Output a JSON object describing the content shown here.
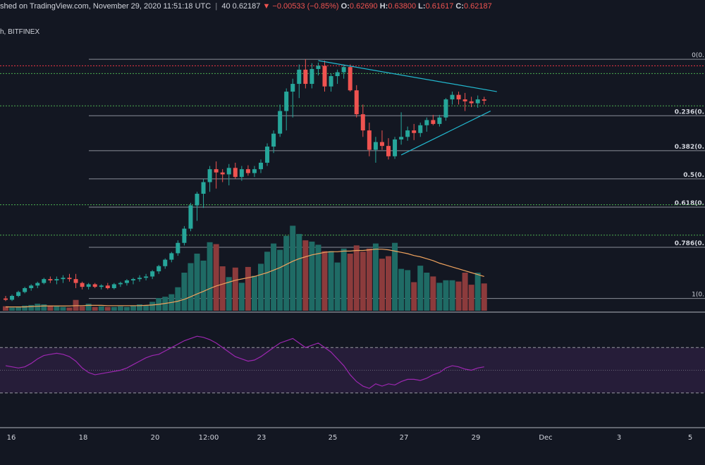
{
  "header": {
    "published": "shed on TradingView.com, November 29, 2020 11:51:18 UTC",
    "open_prefix": "40",
    "last": "0.62187",
    "change": "▼ −0.00533 (−0.85%)",
    "o_label": "O:",
    "o_value": "0.62690",
    "h_label": "H:",
    "h_value": "0.63800",
    "l_label": "L:",
    "l_value": "0.61617",
    "c_label": "C:",
    "c_value": "0.62187"
  },
  "symbol": "h, BITFINEX",
  "colors": {
    "background": "#131722",
    "up": "#26a69a",
    "down": "#ef5350",
    "up_volume": "#1f6b65",
    "down_volume": "#8c3b3c",
    "trendline": "#22b8cf",
    "volume_ma": "#f0a35e",
    "rsi": "#9c27b0",
    "fib": "#8a8e98",
    "green_dotted": "#4caf50",
    "red_dotted": "#f23645"
  },
  "chart_data": {
    "type": "candlestick",
    "x_tick_labels": [
      "16",
      "18",
      "20",
      "12:00",
      "23",
      "25",
      "27",
      "29",
      "Dec",
      "3",
      "5"
    ],
    "fib_levels": [
      {
        "ratio": "0",
        "label": "0(0."
      },
      {
        "ratio": "0.236",
        "label": "0.236(0."
      },
      {
        "ratio": "0.382",
        "label": "0.382(0."
      },
      {
        "ratio": "0.5",
        "label": "0.5(0."
      },
      {
        "ratio": "0.618",
        "label": "0.618(0."
      },
      {
        "ratio": "0.786",
        "label": "0.786(0."
      },
      {
        "ratio": "1",
        "label": "1(0."
      }
    ],
    "candles_o_h_l_c": [
      [
        0.38,
        0.384,
        0.376,
        0.378
      ],
      [
        0.378,
        0.386,
        0.376,
        0.384
      ],
      [
        0.384,
        0.392,
        0.382,
        0.39
      ],
      [
        0.39,
        0.398,
        0.388,
        0.396
      ],
      [
        0.396,
        0.402,
        0.392,
        0.4
      ],
      [
        0.4,
        0.406,
        0.396,
        0.404
      ],
      [
        0.404,
        0.412,
        0.402,
        0.41
      ],
      [
        0.41,
        0.414,
        0.404,
        0.408
      ],
      [
        0.408,
        0.414,
        0.402,
        0.41
      ],
      [
        0.41,
        0.416,
        0.404,
        0.412
      ],
      [
        0.412,
        0.418,
        0.406,
        0.41
      ],
      [
        0.41,
        0.418,
        0.396,
        0.404
      ],
      [
        0.404,
        0.406,
        0.394,
        0.398
      ],
      [
        0.398,
        0.404,
        0.394,
        0.402
      ],
      [
        0.402,
        0.404,
        0.396,
        0.398
      ],
      [
        0.398,
        0.402,
        0.394,
        0.4
      ],
      [
        0.4,
        0.404,
        0.394,
        0.396
      ],
      [
        0.396,
        0.404,
        0.394,
        0.402
      ],
      [
        0.402,
        0.406,
        0.398,
        0.404
      ],
      [
        0.404,
        0.41,
        0.4,
        0.408
      ],
      [
        0.408,
        0.412,
        0.402,
        0.41
      ],
      [
        0.41,
        0.416,
        0.406,
        0.412
      ],
      [
        0.412,
        0.418,
        0.408,
        0.414
      ],
      [
        0.414,
        0.424,
        0.41,
        0.422
      ],
      [
        0.422,
        0.432,
        0.418,
        0.43
      ],
      [
        0.43,
        0.442,
        0.426,
        0.44
      ],
      [
        0.44,
        0.452,
        0.436,
        0.45
      ],
      [
        0.45,
        0.47,
        0.446,
        0.466
      ],
      [
        0.466,
        0.492,
        0.462,
        0.488
      ],
      [
        0.488,
        0.528,
        0.484,
        0.524
      ],
      [
        0.524,
        0.545,
        0.5,
        0.542
      ],
      [
        0.542,
        0.565,
        0.52,
        0.56
      ],
      [
        0.56,
        0.585,
        0.545,
        0.58
      ],
      [
        0.58,
        0.592,
        0.55,
        0.575
      ],
      [
        0.575,
        0.58,
        0.56,
        0.572
      ],
      [
        0.572,
        0.588,
        0.555,
        0.582
      ],
      [
        0.582,
        0.59,
        0.565,
        0.568
      ],
      [
        0.568,
        0.585,
        0.562,
        0.58
      ],
      [
        0.58,
        0.586,
        0.57,
        0.574
      ],
      [
        0.574,
        0.585,
        0.568,
        0.58
      ],
      [
        0.58,
        0.595,
        0.574,
        0.59
      ],
      [
        0.59,
        0.62,
        0.585,
        0.615
      ],
      [
        0.615,
        0.64,
        0.605,
        0.635
      ],
      [
        0.635,
        0.68,
        0.63,
        0.67
      ],
      [
        0.67,
        0.705,
        0.64,
        0.7
      ],
      [
        0.7,
        0.72,
        0.66,
        0.712
      ],
      [
        0.712,
        0.742,
        0.69,
        0.734
      ],
      [
        0.734,
        0.75,
        0.705,
        0.712
      ],
      [
        0.712,
        0.744,
        0.705,
        0.735
      ],
      [
        0.735,
        0.745,
        0.725,
        0.74
      ],
      [
        0.74,
        0.748,
        0.7,
        0.708
      ],
      [
        0.708,
        0.728,
        0.7,
        0.724
      ],
      [
        0.724,
        0.734,
        0.712,
        0.73
      ],
      [
        0.73,
        0.742,
        0.72,
        0.738
      ],
      [
        0.738,
        0.742,
        0.7,
        0.702
      ],
      [
        0.702,
        0.71,
        0.66,
        0.665
      ],
      [
        0.665,
        0.68,
        0.63,
        0.64
      ],
      [
        0.64,
        0.652,
        0.6,
        0.61
      ],
      [
        0.61,
        0.63,
        0.59,
        0.622
      ],
      [
        0.622,
        0.64,
        0.61,
        0.616
      ],
      [
        0.616,
        0.628,
        0.595,
        0.6
      ],
      [
        0.6,
        0.63,
        0.596,
        0.626
      ],
      [
        0.626,
        0.668,
        0.618,
        0.63
      ],
      [
        0.63,
        0.646,
        0.624,
        0.64
      ],
      [
        0.64,
        0.65,
        0.625,
        0.636
      ],
      [
        0.636,
        0.652,
        0.63,
        0.648
      ],
      [
        0.648,
        0.66,
        0.638,
        0.656
      ],
      [
        0.656,
        0.664,
        0.648,
        0.65
      ],
      [
        0.65,
        0.664,
        0.646,
        0.66
      ],
      [
        0.66,
        0.69,
        0.655,
        0.688
      ],
      [
        0.688,
        0.7,
        0.68,
        0.695
      ],
      [
        0.695,
        0.7,
        0.68,
        0.688
      ],
      [
        0.688,
        0.698,
        0.67,
        0.685
      ],
      [
        0.685,
        0.692,
        0.676,
        0.682
      ],
      [
        0.682,
        0.694,
        0.675,
        0.688
      ],
      [
        0.688,
        0.692,
        0.68,
        0.686
      ]
    ],
    "volume": [
      14,
      10,
      12,
      16,
      18,
      22,
      20,
      16,
      14,
      12,
      10,
      34,
      14,
      22,
      12,
      14,
      12,
      12,
      14,
      12,
      16,
      20,
      18,
      28,
      40,
      44,
      52,
      74,
      120,
      150,
      180,
      158,
      216,
      210,
      140,
      106,
      136,
      88,
      138,
      110,
      148,
      186,
      212,
      192,
      236,
      268,
      242,
      222,
      218,
      208,
      188,
      188,
      152,
      196,
      180,
      206,
      186,
      196,
      212,
      164,
      172,
      214,
      132,
      128,
      90,
      142,
      120,
      108,
      88,
      96,
      96,
      92,
      120,
      82,
      120,
      86
    ],
    "volume_ma": [
      12,
      12,
      12,
      12,
      13,
      14,
      15,
      15,
      15,
      15,
      15,
      16,
      16,
      17,
      17,
      17,
      16,
      16,
      16,
      16,
      16,
      16,
      17,
      18,
      20,
      23,
      26,
      30,
      36,
      44,
      53,
      61,
      70,
      78,
      84,
      90,
      96,
      100,
      104,
      108,
      114,
      120,
      128,
      136,
      146,
      156,
      164,
      170,
      176,
      180,
      184,
      186,
      186,
      188,
      188,
      190,
      190,
      192,
      194,
      194,
      192,
      188,
      184,
      180,
      174,
      170,
      164,
      158,
      150,
      144,
      138,
      132,
      126,
      120,
      114,
      108
    ],
    "rsi": [
      54,
      53,
      52,
      53,
      56,
      60,
      63,
      64,
      65,
      64,
      62,
      58,
      52,
      48,
      46,
      47,
      48,
      49,
      50,
      52,
      55,
      58,
      61,
      63,
      64,
      67,
      70,
      73,
      76,
      78,
      80,
      79,
      77,
      74,
      70,
      66,
      62,
      60,
      58,
      59,
      62,
      66,
      70,
      74,
      76,
      78,
      74,
      70,
      72,
      74,
      70,
      66,
      60,
      54,
      46,
      40,
      36,
      34,
      38,
      36,
      38,
      37,
      40,
      42,
      42,
      41,
      43,
      46,
      48,
      52,
      54,
      53,
      51,
      50,
      52,
      53
    ],
    "rsi_bands": {
      "upper": 70,
      "middle": 50,
      "lower": 30
    }
  }
}
